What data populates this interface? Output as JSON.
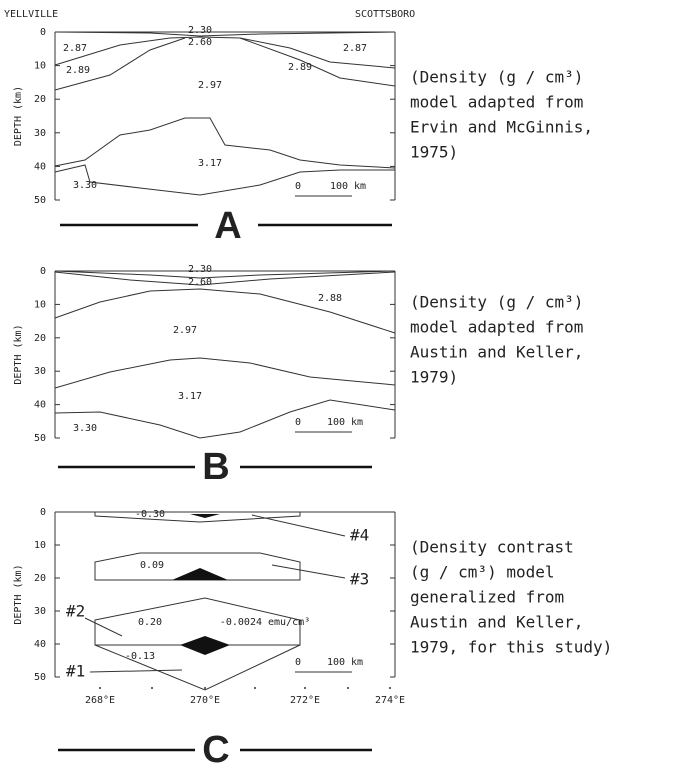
{
  "panels": [
    {
      "letter": "A",
      "left_label": "YELLVILLE",
      "right_label": "SCOTTSBORO",
      "axis_label": "DEPTH (km)",
      "depth_ticks": [
        "0",
        "10",
        "20",
        "30",
        "40",
        "50"
      ],
      "densities": [
        "2.30",
        "2.60",
        "2.87",
        "2.87",
        "2.89",
        "2.89",
        "2.97",
        "3.17",
        "3.30"
      ],
      "scale_labels": [
        "0",
        "100 km"
      ],
      "caption": [
        "(Density (g / cm³)",
        "model adapted from",
        "Ervin and McGinnis,",
        "1975)"
      ]
    },
    {
      "letter": "B",
      "axis_label": "DEPTH (km)",
      "depth_ticks": [
        "0",
        "10",
        "20",
        "30",
        "40",
        "50"
      ],
      "densities": [
        "2.30",
        "2.60",
        "2.88",
        "2.97",
        "3.17",
        "3.30"
      ],
      "scale_labels": [
        "0",
        "100 km"
      ],
      "caption": [
        "(Density (g / cm³)",
        "model adapted from",
        "Austin and Keller,",
        "1979)"
      ]
    },
    {
      "letter": "C",
      "axis_label": "DEPTH (km)",
      "depth_ticks": [
        "0",
        "10",
        "20",
        "30",
        "40",
        "50"
      ],
      "densities": [
        "-0.30",
        "0.09",
        "0.20",
        "-0.0024 emu/cm³",
        "-0.13"
      ],
      "bodies": [
        "#4",
        "#3",
        "#2",
        "#1"
      ],
      "scale_labels": [
        "0",
        "100 km"
      ],
      "longitudes": [
        "268°E",
        "270°E",
        "272°E",
        "274°E"
      ],
      "caption": [
        "(Density contrast",
        "(g / cm³) model",
        "generalized from",
        "Austin and Keller,",
        "1979, for this study)"
      ]
    }
  ]
}
